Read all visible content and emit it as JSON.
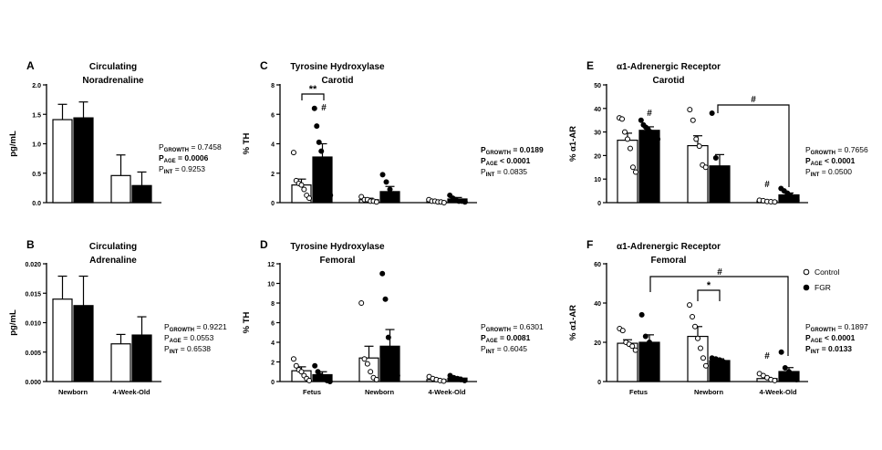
{
  "chart_data": [
    {
      "panel": "A",
      "type": "bar",
      "title": [
        "Circulating",
        "Noradrenaline"
      ],
      "ylabel": "pg/mL",
      "ylim": [
        0,
        2.0
      ],
      "yticks": [
        "0.0",
        "0.5",
        "1.0",
        "1.5",
        "2.0"
      ],
      "ytick_values": [
        0,
        0.5,
        1.0,
        1.5,
        2.0
      ],
      "groups": [],
      "xlabels": [
        "",
        ""
      ],
      "series": [
        {
          "name": "Control",
          "values": [
            1.41,
            0.46
          ],
          "errors": [
            0.26,
            0.35
          ]
        },
        {
          "name": "FGR",
          "values": [
            1.44,
            0.29
          ],
          "errors": [
            0.27,
            0.23
          ]
        }
      ],
      "stats": [
        "GROWTH = 0.7458",
        "AGE = 0.0006",
        "INT = 0.9253"
      ],
      "stats_bold": [
        false,
        true,
        false
      ]
    },
    {
      "panel": "B",
      "type": "bar",
      "title": [
        "Circulating",
        "Adrenaline"
      ],
      "ylabel": "pg/mL",
      "ylim": [
        0,
        0.02
      ],
      "yticks": [
        "0.000",
        "0.005",
        "0.010",
        "0.015",
        "0.020"
      ],
      "ytick_values": [
        0,
        0.005,
        0.01,
        0.015,
        0.02
      ],
      "xlabels": [
        "Newborn",
        "4-Week-Old"
      ],
      "series": [
        {
          "name": "Control",
          "values": [
            0.014,
            0.0064
          ],
          "errors": [
            0.0039,
            0.0016
          ]
        },
        {
          "name": "FGR",
          "values": [
            0.0129,
            0.0079
          ],
          "errors": [
            0.005,
            0.0031
          ]
        }
      ],
      "stats": [
        "GROWTH = 0.9221",
        "AGE = 0.0553",
        "INT = 0.6538"
      ],
      "stats_bold": [
        false,
        false,
        false
      ]
    },
    {
      "panel": "C",
      "type": "bar",
      "title": [
        "Tyrosine Hydroxylase",
        "Carotid"
      ],
      "ylabel": "% TH",
      "ylim": [
        0,
        8
      ],
      "yticks": [
        "0",
        "2",
        "4",
        "6",
        "8"
      ],
      "ytick_values": [
        0,
        2,
        4,
        6,
        8
      ],
      "xlabels": [
        "",
        "",
        ""
      ],
      "series": [
        {
          "name": "Control",
          "values": [
            1.2,
            0.2,
            0.1
          ],
          "errors": [
            0.4,
            0.1,
            0.05
          ],
          "points": [
            [
              3.4,
              1.5,
              1.3,
              1.2,
              0.9,
              0.5,
              0.3
            ],
            [
              0.4,
              0.2,
              0.2,
              0.1,
              0.1,
              0.05
            ],
            [
              0.2,
              0.1,
              0.1,
              0.05,
              0.05,
              0.0
            ]
          ]
        },
        {
          "name": "FGR",
          "values": [
            3.1,
            0.75,
            0.25
          ],
          "errors": [
            0.9,
            0.35,
            0.1
          ],
          "points": [
            [
              6.4,
              5.2,
              4.1,
              3.5,
              2.8,
              2.2,
              0.9,
              0.5
            ],
            [
              1.9,
              1.4,
              0.9,
              0.6,
              0.2
            ],
            [
              0.5,
              0.3,
              0.2,
              0.1,
              0.1,
              0.05
            ]
          ]
        }
      ],
      "annotations": [
        {
          "text": "**",
          "group": 0,
          "type": "bracket"
        },
        {
          "text": "#",
          "group": 0,
          "series": 1
        }
      ],
      "stats": [
        "GROWTH = 0.0189",
        "AGE < 0.0001",
        "INT = 0.0835"
      ],
      "stats_bold": [
        true,
        true,
        false
      ]
    },
    {
      "panel": "D",
      "type": "bar",
      "title": [
        "Tyrosine Hydroxylase",
        "Femoral"
      ],
      "ylabel": "% TH",
      "ylim": [
        0,
        12
      ],
      "yticks": [
        "0",
        "2",
        "4",
        "6",
        "8",
        "10",
        "12"
      ],
      "ytick_values": [
        0,
        2,
        4,
        6,
        8,
        10,
        12
      ],
      "xlabels": [
        "Fetus",
        "Newborn",
        "4-Week-Old"
      ],
      "series": [
        {
          "name": "Control",
          "values": [
            1.1,
            2.4,
            0.2
          ],
          "errors": [
            0.4,
            1.2,
            0.1
          ],
          "points": [
            [
              2.3,
              1.6,
              1.2,
              1.0,
              0.6,
              0.3,
              0.1
            ],
            [
              8.0,
              2.3,
              1.8,
              1.0,
              0.4,
              0.2
            ],
            [
              0.5,
              0.3,
              0.2,
              0.1,
              0.05
            ]
          ]
        },
        {
          "name": "FGR",
          "values": [
            0.7,
            3.6,
            0.35
          ],
          "errors": [
            0.3,
            1.7,
            0.1
          ],
          "points": [
            [
              1.6,
              1.0,
              0.6,
              0.3,
              0.1,
              0.0
            ],
            [
              11.0,
              8.4,
              4.5,
              2.0,
              1.2,
              0.6
            ],
            [
              0.6,
              0.4,
              0.3,
              0.2,
              0.1
            ]
          ]
        }
      ],
      "stats": [
        "GROWTH = 0.6301",
        "AGE = 0.0081",
        "INT = 0.6045"
      ],
      "stats_bold": [
        false,
        true,
        false
      ]
    },
    {
      "panel": "E",
      "type": "bar",
      "title": [
        "α1-Adrenergic Receptor",
        "Carotid"
      ],
      "ylabel": "% α1-AR",
      "ylim": [
        0,
        50
      ],
      "yticks": [
        "0",
        "10",
        "20",
        "30",
        "40",
        "50"
      ],
      "ytick_values": [
        0,
        10,
        20,
        30,
        40,
        50
      ],
      "xlabels": [
        "",
        "",
        ""
      ],
      "series": [
        {
          "name": "Control",
          "values": [
            26.5,
            24.2,
            0.7
          ],
          "errors": [
            3.0,
            4.2,
            0.2
          ],
          "points": [
            [
              36.0,
              35.5,
              30.0,
              27.0,
              23.0,
              15.0,
              13.0
            ],
            [
              39.5,
              35.0,
              27.0,
              24.0,
              16.0,
              15.0
            ],
            [
              1.0,
              0.8,
              0.5,
              0.4,
              0.3
            ]
          ]
        },
        {
          "name": "FGR",
          "values": [
            30.7,
            15.6,
            3.3
          ],
          "errors": [
            1.5,
            4.8,
            0.8
          ],
          "points": [
            [
              35.0,
              33.0,
              32.0,
              31.0,
              30.0,
              29.0,
              28.0,
              27.0
            ],
            [
              38.0,
              19.0,
              13.0,
              11.0,
              4.0
            ],
            [
              6.0,
              5.0,
              4.0,
              3.0,
              2.0,
              1.0
            ]
          ]
        }
      ],
      "annotations": [
        {
          "text": "#",
          "group": 0,
          "series": 1
        },
        {
          "text": "#",
          "group": 2,
          "series": 0
        },
        {
          "text": "#",
          "type": "bracket"
        }
      ],
      "stats": [
        "GROWTH = 0.7656",
        "AGE < 0.0001",
        "INT = 0.0500"
      ],
      "stats_bold": [
        false,
        true,
        false
      ]
    },
    {
      "panel": "F",
      "type": "bar",
      "title": [
        "α1-Adrenergic Receptor",
        "Femoral"
      ],
      "ylabel": "% α1-AR",
      "ylim": [
        0,
        60
      ],
      "yticks": [
        "0",
        "20",
        "40",
        "60"
      ],
      "ytick_values": [
        0,
        20,
        40,
        60
      ],
      "xlabels": [
        "Fetus",
        "Newborn",
        "4-Week-Old"
      ],
      "series": [
        {
          "name": "Control",
          "values": [
            19.5,
            23.0,
            1.5
          ],
          "errors": [
            1.8,
            5.0,
            0.6
          ],
          "points": [
            [
              27.0,
              26.0,
              20.0,
              19.0,
              18.0,
              16.0
            ],
            [
              39.0,
              33.0,
              28.0,
              22.0,
              17.0,
              12.0,
              8.0
            ],
            [
              4.0,
              3.0,
              2.0,
              1.0,
              0.5
            ]
          ]
        },
        {
          "name": "FGR",
          "values": [
            20.0,
            10.7,
            5.1
          ],
          "errors": [
            3.8,
            0.9,
            2.0
          ],
          "points": [
            [
              34.0,
              23.0,
              20.0,
              17.0,
              15.0
            ],
            [
              12.0,
              11.5,
              11.0,
              10.0,
              9.5
            ],
            [
              15.0,
              7.0,
              5.0,
              3.0,
              1.0
            ]
          ]
        }
      ],
      "annotations": [
        {
          "text": "*",
          "type": "bracket"
        },
        {
          "text": "#",
          "type": "bracket"
        },
        {
          "text": "#",
          "group": 2,
          "series": 0
        }
      ],
      "stats": [
        "GROWTH = 0.1897",
        "AGE < 0.0001",
        "INT = 0.0133"
      ],
      "stats_bold": [
        false,
        true,
        true
      ]
    }
  ],
  "legend": {
    "items": [
      {
        "label": "Control",
        "marker": "open-circle"
      },
      {
        "label": "FGR",
        "marker": "filled-circle"
      }
    ]
  },
  "colors": {
    "control_fill": "#ffffff",
    "fgr_fill": "#000000",
    "stroke": "#000000"
  },
  "pvalue_prefix": "P",
  "pvalue_subscripts": [
    "GROWTH",
    "AGE",
    "INT"
  ]
}
